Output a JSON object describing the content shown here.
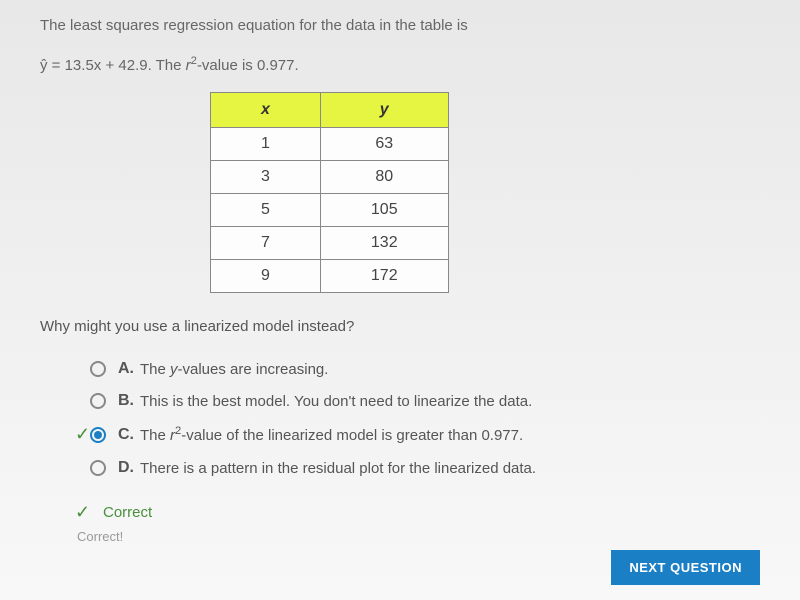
{
  "intro": {
    "line1": "The least squares regression equation for the data in the table is",
    "line2_prefix": "ŷ = 13.5x + 42.9. The ",
    "line2_r2": "r²",
    "line2_suffix": "-value is 0.977."
  },
  "table": {
    "headers": [
      "x",
      "y"
    ],
    "rows": [
      [
        "1",
        "63"
      ],
      [
        "3",
        "80"
      ],
      [
        "5",
        "105"
      ],
      [
        "7",
        "132"
      ],
      [
        "9",
        "172"
      ]
    ],
    "header_bg": "#e6f542",
    "border_color": "#888888",
    "cell_bg": "#fdfdfd"
  },
  "question": "Why might you use a linearized model instead?",
  "options": [
    {
      "label": "A.",
      "text": "The y-values are increasing.",
      "selected": false,
      "marked": false
    },
    {
      "label": "B.",
      "text": "This is the best model. You don't need to linearize the data.",
      "selected": false,
      "marked": false
    },
    {
      "label": "C.",
      "text": "The r²-value of the linearized model is greater than 0.977.",
      "selected": true,
      "marked": true
    },
    {
      "label": "D.",
      "text": "There is a pattern in the residual plot for the linearized data.",
      "selected": false,
      "marked": false
    }
  ],
  "feedback": {
    "title": "Correct",
    "sub": "Correct!"
  },
  "button": {
    "next": "NEXT QUESTION"
  },
  "colors": {
    "accent": "#1a7fc4",
    "correct": "#4a8f3c",
    "text": "#555555"
  }
}
